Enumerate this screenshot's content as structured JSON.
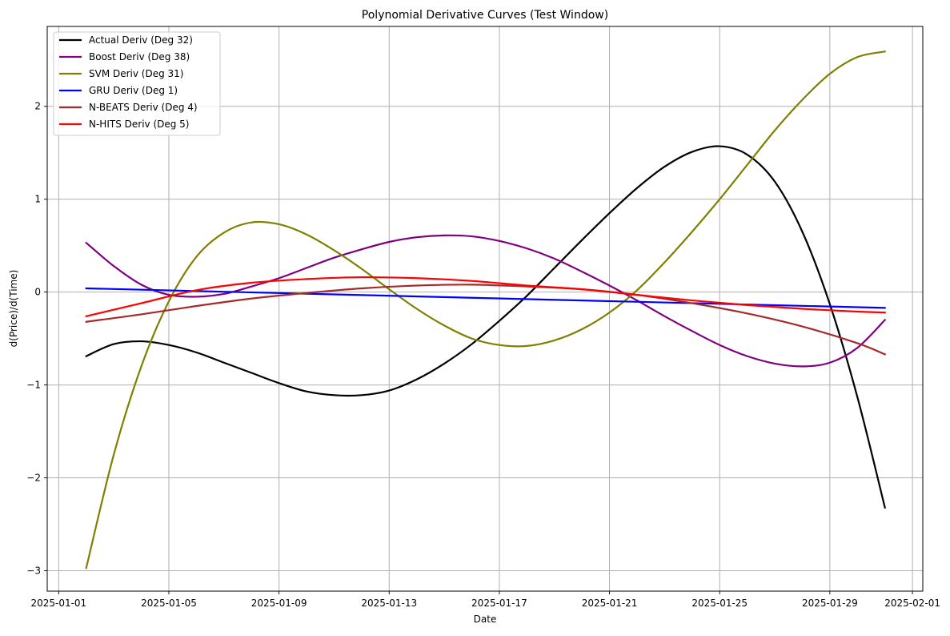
{
  "chart_data": {
    "type": "line",
    "title": "Polynomial Derivative Curves (Test Window)",
    "xlabel": "Date",
    "ylabel": "d(Price)/d(Time)",
    "x_axis": {
      "kind": "date",
      "range": [
        "2024-12-31T14:00",
        "2025-02-01T09:00"
      ],
      "ticks": [
        "2025-01-01",
        "2025-01-05",
        "2025-01-09",
        "2025-01-13",
        "2025-01-17",
        "2025-01-21",
        "2025-01-25",
        "2025-01-29",
        "2025-02-01"
      ]
    },
    "y_axis": {
      "range": [
        -3.22,
        2.86
      ],
      "ticks": [
        -3,
        -2,
        -1,
        0,
        1,
        2
      ],
      "tick_labels": [
        "−3",
        "−2",
        "−1",
        "0",
        "1",
        "2"
      ]
    },
    "grid": true,
    "legend_position": "top-left",
    "series": [
      {
        "name": "Actual Deriv (Deg 32)",
        "color": "#000000",
        "points": [
          [
            "2025-01-02",
            -0.69
          ],
          [
            "2025-01-03",
            -0.56
          ],
          [
            "2025-01-04",
            -0.53
          ],
          [
            "2025-01-05",
            -0.57
          ],
          [
            "2025-01-06",
            -0.65
          ],
          [
            "2025-01-07",
            -0.76
          ],
          [
            "2025-01-08",
            -0.87
          ],
          [
            "2025-01-09",
            -0.98
          ],
          [
            "2025-01-10",
            -1.07
          ],
          [
            "2025-01-11",
            -1.11
          ],
          [
            "2025-01-12",
            -1.11
          ],
          [
            "2025-01-13",
            -1.06
          ],
          [
            "2025-01-14",
            -0.94
          ],
          [
            "2025-01-15",
            -0.77
          ],
          [
            "2025-01-16",
            -0.56
          ],
          [
            "2025-01-17",
            -0.31
          ],
          [
            "2025-01-18",
            -0.04
          ],
          [
            "2025-01-19",
            0.26
          ],
          [
            "2025-01-20",
            0.56
          ],
          [
            "2025-01-21",
            0.85
          ],
          [
            "2025-01-22",
            1.12
          ],
          [
            "2025-01-23",
            1.35
          ],
          [
            "2025-01-24",
            1.51
          ],
          [
            "2025-01-25",
            1.57
          ],
          [
            "2025-01-26",
            1.48
          ],
          [
            "2025-01-27",
            1.19
          ],
          [
            "2025-01-28",
            0.65
          ],
          [
            "2025-01-29",
            -0.13
          ],
          [
            "2025-01-30",
            -1.13
          ],
          [
            "2025-01-31",
            -2.32
          ]
        ]
      },
      {
        "name": "Boost Deriv (Deg 38)",
        "color": "#800080",
        "points": [
          [
            "2025-01-02",
            0.53
          ],
          [
            "2025-01-03",
            0.28
          ],
          [
            "2025-01-04",
            0.08
          ],
          [
            "2025-01-05",
            -0.03
          ],
          [
            "2025-01-06",
            -0.05
          ],
          [
            "2025-01-07",
            -0.02
          ],
          [
            "2025-01-08",
            0.06
          ],
          [
            "2025-01-09",
            0.15
          ],
          [
            "2025-01-10",
            0.26
          ],
          [
            "2025-01-11",
            0.37
          ],
          [
            "2025-01-12",
            0.46
          ],
          [
            "2025-01-13",
            0.54
          ],
          [
            "2025-01-14",
            0.59
          ],
          [
            "2025-01-15",
            0.61
          ],
          [
            "2025-01-16",
            0.6
          ],
          [
            "2025-01-17",
            0.55
          ],
          [
            "2025-01-18",
            0.47
          ],
          [
            "2025-01-19",
            0.36
          ],
          [
            "2025-01-20",
            0.22
          ],
          [
            "2025-01-21",
            0.07
          ],
          [
            "2025-01-22",
            -0.09
          ],
          [
            "2025-01-23",
            -0.26
          ],
          [
            "2025-01-24",
            -0.42
          ],
          [
            "2025-01-25",
            -0.57
          ],
          [
            "2025-01-26",
            -0.69
          ],
          [
            "2025-01-27",
            -0.77
          ],
          [
            "2025-01-28",
            -0.8
          ],
          [
            "2025-01-29",
            -0.76
          ],
          [
            "2025-01-30",
            -0.6
          ],
          [
            "2025-01-31",
            -0.3
          ]
        ]
      },
      {
        "name": "SVM Deriv (Deg 31)",
        "color": "#808000",
        "points": [
          [
            "2025-01-02",
            -2.97
          ],
          [
            "2025-01-03",
            -1.75
          ],
          [
            "2025-01-04",
            -0.8
          ],
          [
            "2025-01-05",
            -0.1
          ],
          [
            "2025-01-06",
            0.38
          ],
          [
            "2025-01-07",
            0.64
          ],
          [
            "2025-01-08",
            0.75
          ],
          [
            "2025-01-09",
            0.73
          ],
          [
            "2025-01-10",
            0.62
          ],
          [
            "2025-01-11",
            0.45
          ],
          [
            "2025-01-12",
            0.25
          ],
          [
            "2025-01-13",
            0.03
          ],
          [
            "2025-01-14",
            -0.18
          ],
          [
            "2025-01-15",
            -0.36
          ],
          [
            "2025-01-16",
            -0.5
          ],
          [
            "2025-01-17",
            -0.57
          ],
          [
            "2025-01-18",
            -0.58
          ],
          [
            "2025-01-19",
            -0.52
          ],
          [
            "2025-01-20",
            -0.4
          ],
          [
            "2025-01-21",
            -0.22
          ],
          [
            "2025-01-22",
            0.02
          ],
          [
            "2025-01-23",
            0.32
          ],
          [
            "2025-01-24",
            0.65
          ],
          [
            "2025-01-25",
            1.0
          ],
          [
            "2025-01-26",
            1.37
          ],
          [
            "2025-01-27",
            1.74
          ],
          [
            "2025-01-28",
            2.07
          ],
          [
            "2025-01-29",
            2.35
          ],
          [
            "2025-01-30",
            2.53
          ],
          [
            "2025-01-31",
            2.59
          ]
        ]
      },
      {
        "name": "GRU Deriv (Deg 1)",
        "color": "#0000ff",
        "points": [
          [
            "2025-01-02",
            0.04
          ],
          [
            "2025-01-31",
            -0.17
          ]
        ]
      },
      {
        "name": "N-BEATS Deriv (Deg 4)",
        "color": "#a52a2a",
        "points": [
          [
            "2025-01-02",
            -0.32
          ],
          [
            "2025-01-04",
            -0.24
          ],
          [
            "2025-01-06",
            -0.15
          ],
          [
            "2025-01-08",
            -0.07
          ],
          [
            "2025-01-10",
            -0.01
          ],
          [
            "2025-01-12",
            0.04
          ],
          [
            "2025-01-14",
            0.07
          ],
          [
            "2025-01-16",
            0.08
          ],
          [
            "2025-01-18",
            0.06
          ],
          [
            "2025-01-20",
            0.03
          ],
          [
            "2025-01-22",
            -0.03
          ],
          [
            "2025-01-24",
            -0.12
          ],
          [
            "2025-01-26",
            -0.23
          ],
          [
            "2025-01-28",
            -0.37
          ],
          [
            "2025-01-30",
            -0.55
          ],
          [
            "2025-01-31",
            -0.67
          ]
        ]
      },
      {
        "name": "N-HITS Deriv (Deg 5)",
        "color": "#ff0000",
        "points": [
          [
            "2025-01-02",
            -0.26
          ],
          [
            "2025-01-04",
            -0.12
          ],
          [
            "2025-01-06",
            0.02
          ],
          [
            "2025-01-08",
            0.1
          ],
          [
            "2025-01-10",
            0.14
          ],
          [
            "2025-01-12",
            0.16
          ],
          [
            "2025-01-14",
            0.15
          ],
          [
            "2025-01-16",
            0.12
          ],
          [
            "2025-01-18",
            0.07
          ],
          [
            "2025-01-20",
            0.03
          ],
          [
            "2025-01-22",
            -0.03
          ],
          [
            "2025-01-24",
            -0.09
          ],
          [
            "2025-01-26",
            -0.14
          ],
          [
            "2025-01-28",
            -0.18
          ],
          [
            "2025-01-30",
            -0.21
          ],
          [
            "2025-01-31",
            -0.22
          ]
        ]
      }
    ]
  }
}
